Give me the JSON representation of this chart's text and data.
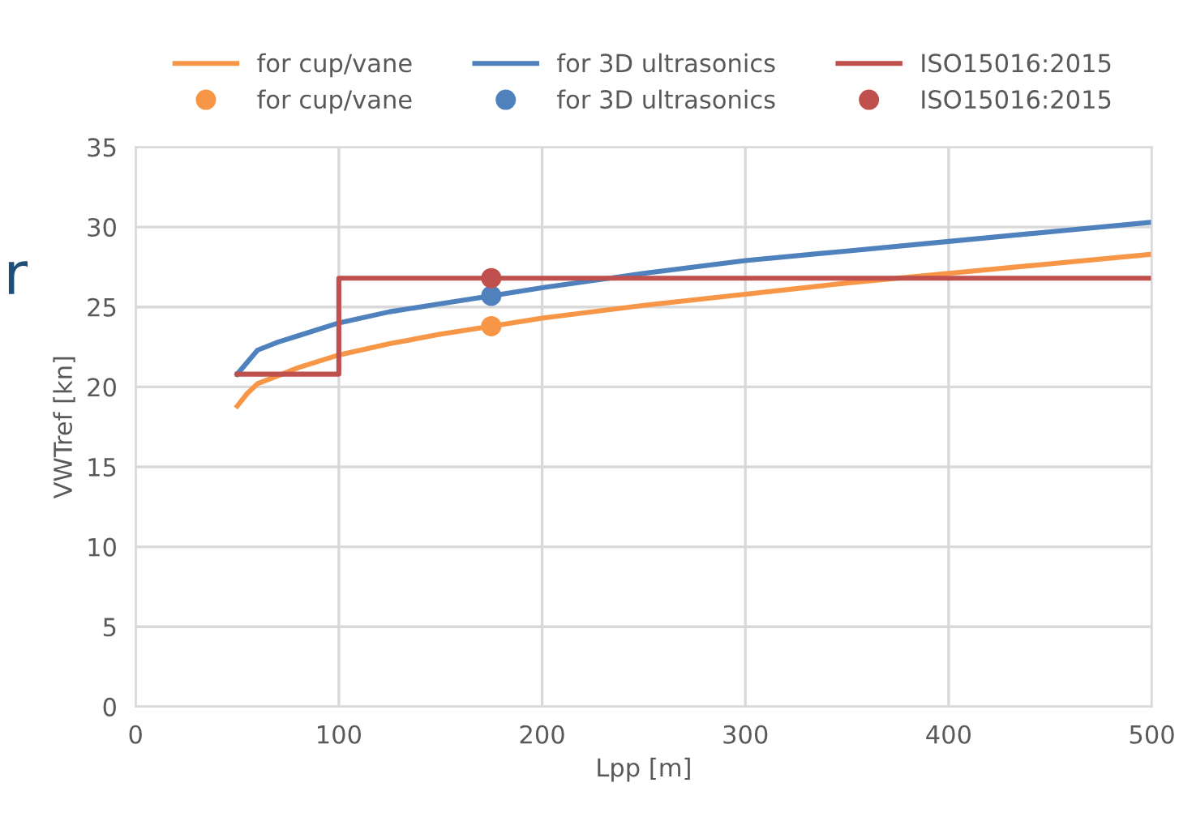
{
  "chart_data": {
    "type": "line",
    "xlabel": "Lpp [m]",
    "ylabel": "VWTref [kn]",
    "xlim": [
      0,
      500
    ],
    "xticks": [
      0,
      100,
      200,
      300,
      400,
      500
    ],
    "ylim": [
      0,
      35
    ],
    "yticks": [
      0,
      5,
      10,
      15,
      20,
      25,
      30,
      35
    ],
    "grid": true,
    "legend": "top",
    "annotations": [
      "r"
    ],
    "series": [
      {
        "name": "for cup/vane",
        "color": "#f79646",
        "x": [
          50,
          55,
          60,
          70,
          80,
          100,
          125,
          150,
          175,
          200,
          250,
          300,
          350,
          400,
          450,
          500
        ],
        "values": [
          18.8,
          19.6,
          20.2,
          20.7,
          21.2,
          22.0,
          22.7,
          23.3,
          23.8,
          24.3,
          25.1,
          25.8,
          26.5,
          27.1,
          27.7,
          28.3
        ]
      },
      {
        "name": "for 3D ultrasonics",
        "color": "#4f81bd",
        "x": [
          50,
          60,
          70,
          80,
          100,
          125,
          150,
          175,
          200,
          250,
          300,
          350,
          400,
          450,
          500
        ],
        "values": [
          20.8,
          22.3,
          22.8,
          23.2,
          24.0,
          24.7,
          25.2,
          25.7,
          26.2,
          27.1,
          27.9,
          28.5,
          29.1,
          29.7,
          30.3
        ]
      },
      {
        "name": "ISO15016:2015",
        "color": "#c0504d",
        "type": "step",
        "x": [
          50,
          100,
          500
        ],
        "values": [
          20.8,
          26.8,
          26.8
        ]
      },
      {
        "name": "for cup/vane",
        "color": "#f79646",
        "type": "scatter",
        "marker": "circle",
        "x": [
          175
        ],
        "values": [
          23.8
        ]
      },
      {
        "name": "for 3D ultrasonics",
        "color": "#4f81bd",
        "type": "scatter",
        "marker": "circle",
        "x": [
          175
        ],
        "values": [
          25.7
        ]
      },
      {
        "name": "ISO15016:2015",
        "color": "#c0504d",
        "type": "scatter",
        "marker": "circle",
        "x": [
          175
        ],
        "values": [
          26.8
        ]
      }
    ]
  }
}
